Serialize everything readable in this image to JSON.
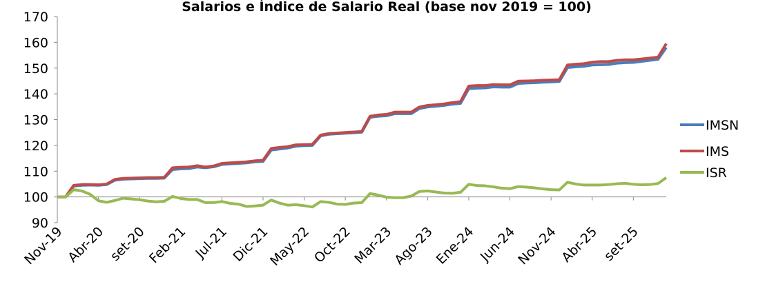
{
  "chart_data": {
    "type": "line",
    "title": "Salarios e Índice de Salario Real (base nov 2019 = 100)",
    "categories": [
      "Nov-19",
      null,
      null,
      null,
      null,
      "Abr-20",
      null,
      null,
      null,
      null,
      "set-20",
      null,
      null,
      null,
      null,
      "Feb-21",
      null,
      null,
      null,
      null,
      "Jul-21",
      null,
      null,
      null,
      null,
      "Dic-21",
      null,
      null,
      null,
      null,
      "May-22",
      null,
      null,
      null,
      null,
      "Oct-22",
      null,
      null,
      null,
      null,
      "Mar-23",
      null,
      null,
      null,
      null,
      "Ago-23",
      null,
      null,
      null,
      null,
      "Ene-24",
      null,
      null,
      null,
      null,
      "Jun-24",
      null,
      null,
      null,
      null,
      "Nov-24",
      null,
      null,
      null,
      null,
      "Abr-25",
      null,
      null,
      null,
      null,
      "set-25",
      null,
      null,
      null,
      null
    ],
    "series": [
      {
        "name": "IMSN",
        "color": "#4a7ebb",
        "values": [
          100,
          100,
          104.2,
          104.5,
          104.6,
          104.5,
          104.8,
          106.5,
          106.9,
          107,
          107.1,
          107.2,
          107.2,
          107.3,
          110.6,
          110.9,
          111,
          111.6,
          111.3,
          111.7,
          112.6,
          112.8,
          113,
          113.2,
          113.6,
          113.8,
          118.2,
          118.6,
          119,
          119.7,
          119.9,
          120,
          123.7,
          124.3,
          124.5,
          124.7,
          124.9,
          125.1,
          130.9,
          131.3,
          131.5,
          132.3,
          132.3,
          132.3,
          134.3,
          134.9,
          135.2,
          135.5,
          136,
          136.3,
          142,
          142.2,
          142.3,
          142.7,
          142.6,
          142.6,
          144,
          144.2,
          144.3,
          144.5,
          144.6,
          144.8,
          150.2,
          150.5,
          150.7,
          151.2,
          151.3,
          151.4,
          151.9,
          152.1,
          152.2,
          152.6,
          153,
          153.4,
          158
        ]
      },
      {
        "name": "IMS",
        "color": "#be4b48",
        "values": [
          100,
          100,
          104.5,
          104.8,
          104.8,
          104.7,
          105,
          106.8,
          107.2,
          107.3,
          107.4,
          107.5,
          107.5,
          107.6,
          111.3,
          111.5,
          111.6,
          112.1,
          111.6,
          112,
          113,
          113.2,
          113.4,
          113.6,
          114,
          114.2,
          118.8,
          119.2,
          119.5,
          120.2,
          120.3,
          120.4,
          124,
          124.6,
          124.8,
          125,
          125.2,
          125.4,
          131.3,
          131.8,
          132,
          132.9,
          132.9,
          132.9,
          134.9,
          135.5,
          135.8,
          136.1,
          136.6,
          137,
          143,
          143.2,
          143.2,
          143.6,
          143.5,
          143.5,
          144.9,
          145,
          145.1,
          145.3,
          145.4,
          145.5,
          151.2,
          151.5,
          151.7,
          152.3,
          152.5,
          152.5,
          153,
          153.2,
          153.2,
          153.5,
          153.9,
          154.2,
          159.5
        ]
      },
      {
        "name": "ISR",
        "color": "#98b954",
        "values": [
          100,
          100,
          102.8,
          102.3,
          101,
          98.5,
          97.9,
          98.6,
          99.5,
          99.2,
          98.9,
          98.4,
          98.1,
          98.3,
          100.2,
          99.4,
          99,
          99,
          97.8,
          97.8,
          98.2,
          97.5,
          97.2,
          96.3,
          96.5,
          96.8,
          98.8,
          97.6,
          96.8,
          97,
          96.6,
          96.1,
          98.2,
          97.9,
          97.2,
          97.1,
          97.6,
          97.8,
          101.3,
          100.7,
          99.9,
          99.7,
          99.7,
          100.3,
          102.1,
          102.3,
          101.9,
          101.5,
          101.4,
          101.8,
          104.9,
          104.4,
          104.3,
          103.9,
          103.4,
          103.2,
          104,
          103.8,
          103.5,
          103.1,
          102.8,
          102.7,
          105.7,
          105,
          104.6,
          104.6,
          104.6,
          104.8,
          105.1,
          105.3,
          104.9,
          104.7,
          104.8,
          105.2,
          107.5
        ]
      }
    ],
    "ylim": [
      90,
      170
    ],
    "yticks": [
      90,
      100,
      110,
      120,
      130,
      140,
      150,
      160,
      170
    ],
    "xaxis_crosses": 100,
    "legend": "right"
  }
}
